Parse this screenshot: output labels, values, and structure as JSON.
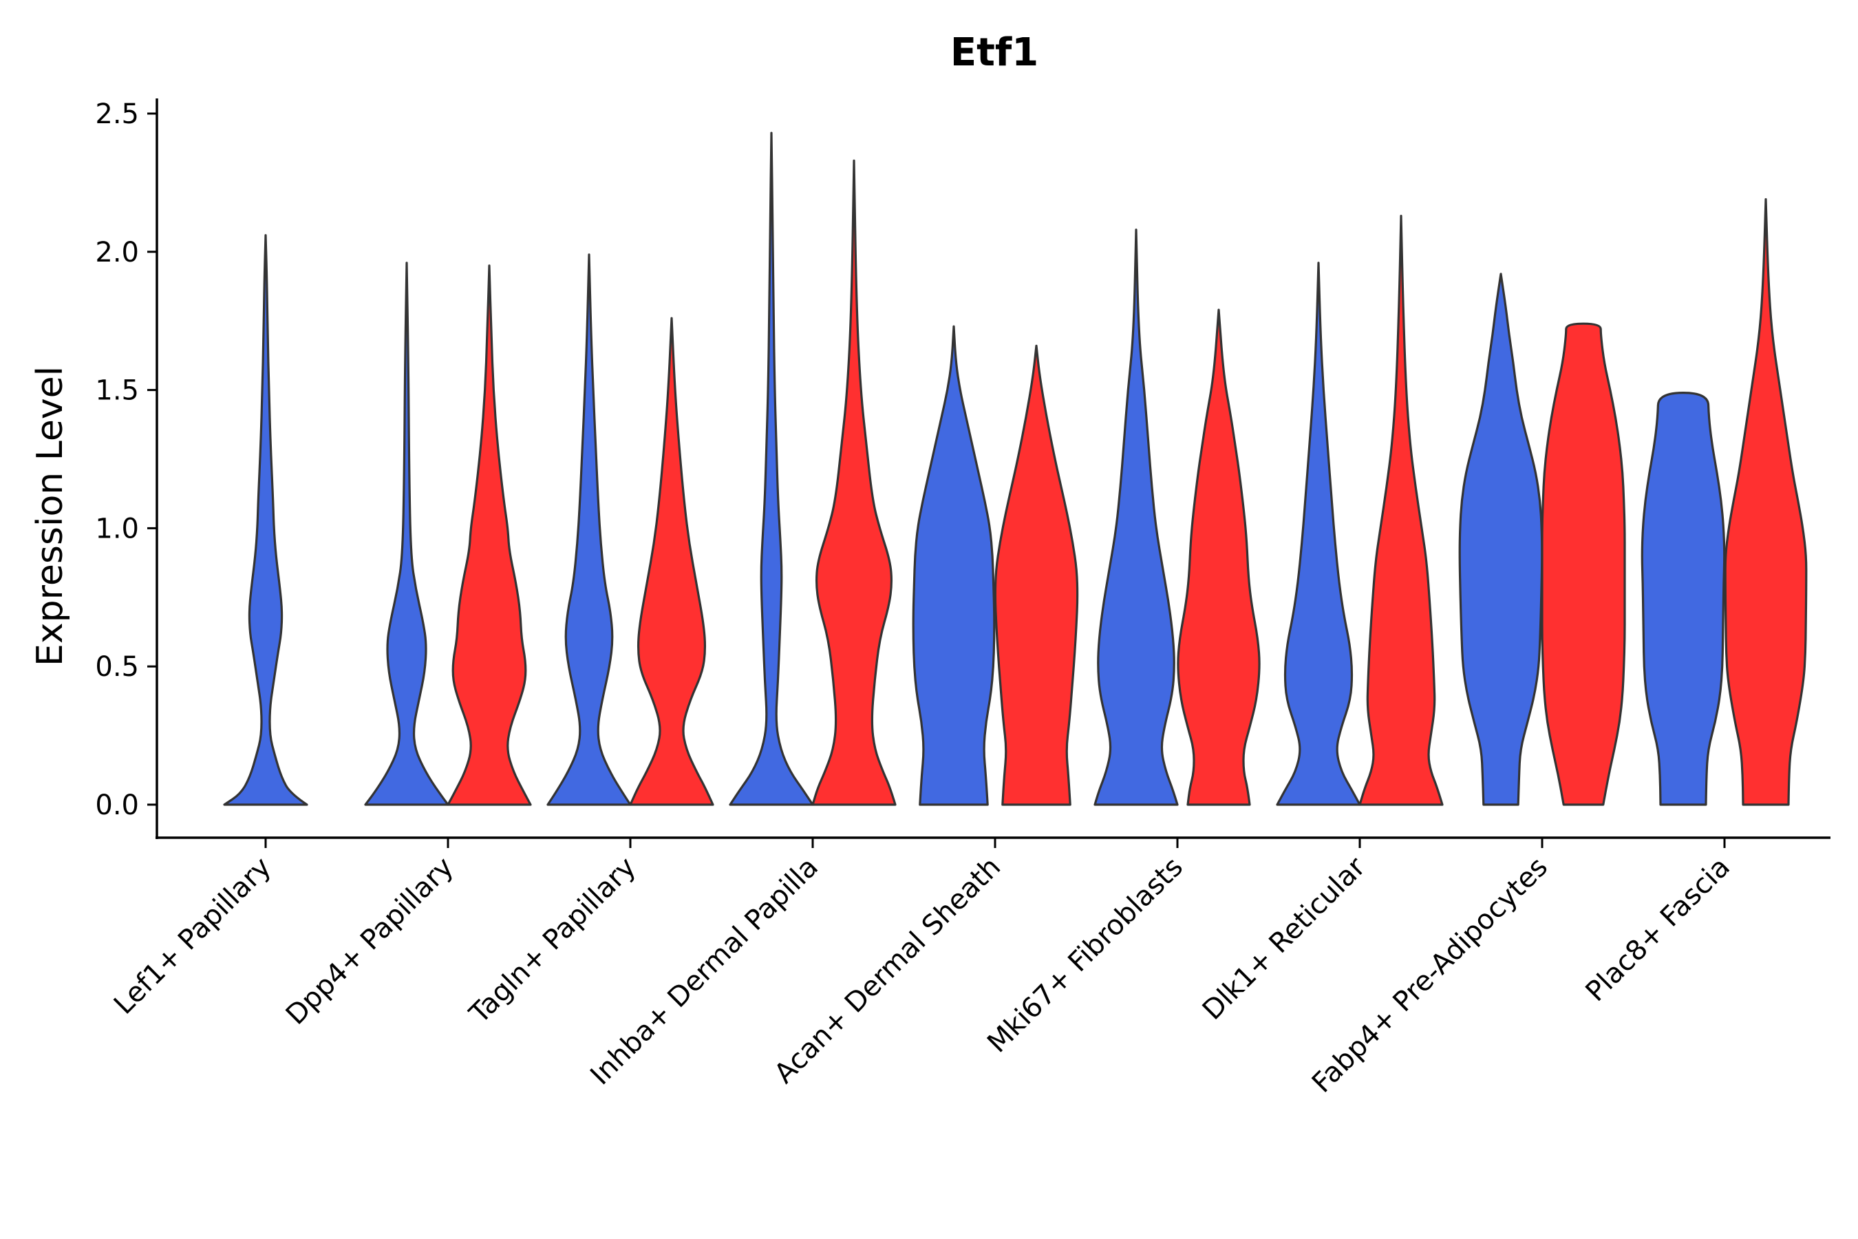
{
  "chart_data": {
    "type": "violin",
    "title": "Etf1",
    "xlabel": "",
    "ylabel": "Expression Level",
    "ylim": [
      -0.12,
      2.55
    ],
    "yticks": [
      0.0,
      0.5,
      1.0,
      1.5,
      2.0,
      2.5
    ],
    "ytick_labels": [
      "0.0",
      "0.5",
      "1.0",
      "1.5",
      "2.0",
      "2.5"
    ],
    "categories": [
      "Lef1+ Papillary",
      "Dpp4+ Papillary",
      "Tagln+ Papillary",
      "Inhba+ Dermal Papilla",
      "Acan+ Dermal Sheath",
      "Mki67+ Fibroblasts",
      "Dlk1+ Reticular",
      "Fabp4+ Pre-Adipocytes",
      "Plac8+ Fascia"
    ],
    "series_colors": {
      "blue": "#4169E1",
      "red": "#FF3030"
    },
    "violins": [
      {
        "category": "Lef1+ Papillary",
        "group": "blue",
        "max": 2.06,
        "profile": [
          [
            0.0,
            1.0
          ],
          [
            0.04,
            0.6
          ],
          [
            0.1,
            0.38
          ],
          [
            0.18,
            0.22
          ],
          [
            0.25,
            0.1
          ],
          [
            0.35,
            0.1
          ],
          [
            0.45,
            0.2
          ],
          [
            0.55,
            0.3
          ],
          [
            0.62,
            0.38
          ],
          [
            0.7,
            0.4
          ],
          [
            0.78,
            0.35
          ],
          [
            0.9,
            0.25
          ],
          [
            1.0,
            0.2
          ],
          [
            1.1,
            0.18
          ],
          [
            1.3,
            0.12
          ],
          [
            1.5,
            0.08
          ],
          [
            1.7,
            0.05
          ],
          [
            1.9,
            0.03
          ],
          [
            2.06,
            0.0
          ]
        ]
      },
      {
        "category": "Dpp4+ Papillary",
        "group": "blue",
        "max": 1.96,
        "profile": [
          [
            0.0,
            1.0
          ],
          [
            0.05,
            0.75
          ],
          [
            0.12,
            0.45
          ],
          [
            0.2,
            0.2
          ],
          [
            0.28,
            0.16
          ],
          [
            0.38,
            0.3
          ],
          [
            0.48,
            0.44
          ],
          [
            0.58,
            0.48
          ],
          [
            0.66,
            0.4
          ],
          [
            0.78,
            0.22
          ],
          [
            0.9,
            0.1
          ],
          [
            1.2,
            0.06
          ],
          [
            1.6,
            0.04
          ],
          [
            1.96,
            0.0
          ]
        ]
      },
      {
        "category": "Dpp4+ Papillary",
        "group": "red",
        "max": 1.95,
        "profile": [
          [
            0.0,
            1.0
          ],
          [
            0.05,
            0.82
          ],
          [
            0.12,
            0.58
          ],
          [
            0.2,
            0.42
          ],
          [
            0.28,
            0.5
          ],
          [
            0.38,
            0.75
          ],
          [
            0.45,
            0.88
          ],
          [
            0.52,
            0.88
          ],
          [
            0.6,
            0.78
          ],
          [
            0.7,
            0.75
          ],
          [
            0.8,
            0.65
          ],
          [
            0.92,
            0.48
          ],
          [
            1.0,
            0.45
          ],
          [
            1.1,
            0.35
          ],
          [
            1.3,
            0.2
          ],
          [
            1.5,
            0.1
          ],
          [
            1.7,
            0.05
          ],
          [
            1.95,
            0.0
          ]
        ]
      },
      {
        "category": "Tagln+ Papillary",
        "group": "blue",
        "max": 1.99,
        "profile": [
          [
            0.0,
            1.0
          ],
          [
            0.05,
            0.78
          ],
          [
            0.12,
            0.5
          ],
          [
            0.2,
            0.26
          ],
          [
            0.28,
            0.2
          ],
          [
            0.38,
            0.32
          ],
          [
            0.5,
            0.5
          ],
          [
            0.6,
            0.58
          ],
          [
            0.7,
            0.52
          ],
          [
            0.8,
            0.38
          ],
          [
            0.95,
            0.28
          ],
          [
            1.1,
            0.22
          ],
          [
            1.3,
            0.16
          ],
          [
            1.5,
            0.1
          ],
          [
            1.7,
            0.05
          ],
          [
            1.99,
            0.0
          ]
        ]
      },
      {
        "category": "Tagln+ Papillary",
        "group": "red",
        "max": 1.76,
        "profile": [
          [
            0.0,
            1.0
          ],
          [
            0.06,
            0.82
          ],
          [
            0.12,
            0.6
          ],
          [
            0.2,
            0.35
          ],
          [
            0.28,
            0.25
          ],
          [
            0.38,
            0.45
          ],
          [
            0.48,
            0.75
          ],
          [
            0.56,
            0.82
          ],
          [
            0.65,
            0.78
          ],
          [
            0.8,
            0.6
          ],
          [
            0.95,
            0.42
          ],
          [
            1.1,
            0.3
          ],
          [
            1.3,
            0.18
          ],
          [
            1.5,
            0.08
          ],
          [
            1.76,
            0.0
          ]
        ]
      },
      {
        "category": "Inhba+ Dermal Papilla",
        "group": "blue",
        "max": 2.43,
        "profile": [
          [
            0.0,
            1.0
          ],
          [
            0.05,
            0.78
          ],
          [
            0.12,
            0.45
          ],
          [
            0.2,
            0.22
          ],
          [
            0.3,
            0.1
          ],
          [
            0.45,
            0.16
          ],
          [
            0.6,
            0.2
          ],
          [
            0.75,
            0.24
          ],
          [
            0.85,
            0.25
          ],
          [
            0.95,
            0.22
          ],
          [
            1.1,
            0.16
          ],
          [
            1.3,
            0.12
          ],
          [
            1.5,
            0.08
          ],
          [
            1.8,
            0.05
          ],
          [
            2.1,
            0.03
          ],
          [
            2.43,
            0.0
          ]
        ]
      },
      {
        "category": "Inhba+ Dermal Papilla",
        "group": "red",
        "max": 2.33,
        "profile": [
          [
            0.0,
            1.0
          ],
          [
            0.06,
            0.88
          ],
          [
            0.12,
            0.7
          ],
          [
            0.2,
            0.5
          ],
          [
            0.3,
            0.42
          ],
          [
            0.45,
            0.5
          ],
          [
            0.6,
            0.62
          ],
          [
            0.72,
            0.85
          ],
          [
            0.8,
            0.92
          ],
          [
            0.88,
            0.88
          ],
          [
            1.0,
            0.62
          ],
          [
            1.1,
            0.45
          ],
          [
            1.3,
            0.3
          ],
          [
            1.5,
            0.16
          ],
          [
            1.8,
            0.06
          ],
          [
            2.33,
            0.0
          ]
        ]
      },
      {
        "category": "Acan+ Dermal Sheath",
        "group": "blue",
        "max": 1.73,
        "profile": [
          [
            0.0,
            0.82
          ],
          [
            0.1,
            0.78
          ],
          [
            0.2,
            0.72
          ],
          [
            0.3,
            0.78
          ],
          [
            0.4,
            0.9
          ],
          [
            0.5,
            0.96
          ],
          [
            0.6,
            0.98
          ],
          [
            0.7,
            0.98
          ],
          [
            0.8,
            0.96
          ],
          [
            0.9,
            0.94
          ],
          [
            1.0,
            0.88
          ],
          [
            1.1,
            0.75
          ],
          [
            1.2,
            0.6
          ],
          [
            1.3,
            0.45
          ],
          [
            1.4,
            0.3
          ],
          [
            1.5,
            0.15
          ],
          [
            1.6,
            0.05
          ],
          [
            1.73,
            0.0
          ]
        ]
      },
      {
        "category": "Acan+ Dermal Sheath",
        "group": "red",
        "max": 1.66,
        "profile": [
          [
            0.0,
            0.82
          ],
          [
            0.1,
            0.78
          ],
          [
            0.2,
            0.72
          ],
          [
            0.3,
            0.8
          ],
          [
            0.45,
            0.88
          ],
          [
            0.55,
            0.93
          ],
          [
            0.65,
            0.97
          ],
          [
            0.75,
            1.0
          ],
          [
            0.85,
            0.98
          ],
          [
            0.95,
            0.88
          ],
          [
            1.05,
            0.75
          ],
          [
            1.15,
            0.6
          ],
          [
            1.25,
            0.45
          ],
          [
            1.4,
            0.25
          ],
          [
            1.55,
            0.08
          ],
          [
            1.66,
            0.0
          ]
        ]
      },
      {
        "category": "Mki67+ Fibroblasts",
        "group": "blue",
        "max": 2.08,
        "profile": [
          [
            0.0,
            1.0
          ],
          [
            0.05,
            0.9
          ],
          [
            0.12,
            0.72
          ],
          [
            0.2,
            0.6
          ],
          [
            0.28,
            0.68
          ],
          [
            0.4,
            0.88
          ],
          [
            0.5,
            0.93
          ],
          [
            0.6,
            0.9
          ],
          [
            0.72,
            0.8
          ],
          [
            0.85,
            0.65
          ],
          [
            1.0,
            0.48
          ],
          [
            1.15,
            0.38
          ],
          [
            1.3,
            0.3
          ],
          [
            1.5,
            0.2
          ],
          [
            1.7,
            0.06
          ],
          [
            2.08,
            0.0
          ]
        ]
      },
      {
        "category": "Mki67+ Fibroblasts",
        "group": "red",
        "max": 1.79,
        "profile": [
          [
            0.0,
            0.75
          ],
          [
            0.06,
            0.7
          ],
          [
            0.12,
            0.6
          ],
          [
            0.2,
            0.6
          ],
          [
            0.28,
            0.75
          ],
          [
            0.38,
            0.92
          ],
          [
            0.5,
            1.0
          ],
          [
            0.6,
            0.95
          ],
          [
            0.72,
            0.8
          ],
          [
            0.82,
            0.72
          ],
          [
            0.95,
            0.68
          ],
          [
            1.05,
            0.62
          ],
          [
            1.2,
            0.5
          ],
          [
            1.3,
            0.4
          ],
          [
            1.4,
            0.3
          ],
          [
            1.55,
            0.12
          ],
          [
            1.79,
            0.0
          ]
        ]
      },
      {
        "category": "Dlk1+ Reticular",
        "group": "blue",
        "max": 1.96,
        "profile": [
          [
            0.0,
            1.0
          ],
          [
            0.05,
            0.82
          ],
          [
            0.12,
            0.55
          ],
          [
            0.2,
            0.42
          ],
          [
            0.28,
            0.55
          ],
          [
            0.38,
            0.78
          ],
          [
            0.48,
            0.82
          ],
          [
            0.58,
            0.76
          ],
          [
            0.68,
            0.62
          ],
          [
            0.8,
            0.5
          ],
          [
            0.95,
            0.4
          ],
          [
            1.1,
            0.32
          ],
          [
            1.3,
            0.22
          ],
          [
            1.5,
            0.12
          ],
          [
            1.7,
            0.05
          ],
          [
            1.96,
            0.0
          ]
        ]
      },
      {
        "category": "Dlk1+ Reticular",
        "group": "red",
        "max": 2.13,
        "profile": [
          [
            0.0,
            1.0
          ],
          [
            0.06,
            0.88
          ],
          [
            0.12,
            0.72
          ],
          [
            0.18,
            0.65
          ],
          [
            0.25,
            0.72
          ],
          [
            0.35,
            0.82
          ],
          [
            0.45,
            0.8
          ],
          [
            0.58,
            0.76
          ],
          [
            0.72,
            0.7
          ],
          [
            0.88,
            0.62
          ],
          [
            1.0,
            0.5
          ],
          [
            1.15,
            0.35
          ],
          [
            1.3,
            0.22
          ],
          [
            1.5,
            0.12
          ],
          [
            1.8,
            0.05
          ],
          [
            2.13,
            0.0
          ]
        ]
      },
      {
        "category": "Fabp4+ Pre-Adipocytes",
        "group": "blue",
        "max": 1.92,
        "profile": [
          [
            0.0,
            0.42
          ],
          [
            0.1,
            0.44
          ],
          [
            0.2,
            0.47
          ],
          [
            0.3,
            0.65
          ],
          [
            0.4,
            0.82
          ],
          [
            0.5,
            0.92
          ],
          [
            0.6,
            0.95
          ],
          [
            0.75,
            0.98
          ],
          [
            0.9,
            1.0
          ],
          [
            1.0,
            0.99
          ],
          [
            1.1,
            0.95
          ],
          [
            1.2,
            0.85
          ],
          [
            1.3,
            0.68
          ],
          [
            1.4,
            0.5
          ],
          [
            1.5,
            0.38
          ],
          [
            1.6,
            0.3
          ],
          [
            1.7,
            0.2
          ],
          [
            1.8,
            0.12
          ],
          [
            1.92,
            0.0
          ]
        ]
      },
      {
        "category": "Fabp4+ Pre-Adipocytes",
        "group": "red",
        "max": 1.74,
        "profile": [
          [
            0.0,
            0.48
          ],
          [
            0.1,
            0.6
          ],
          [
            0.2,
            0.75
          ],
          [
            0.3,
            0.88
          ],
          [
            0.4,
            0.95
          ],
          [
            0.5,
            0.98
          ],
          [
            0.6,
            1.0
          ],
          [
            0.7,
            1.0
          ],
          [
            0.8,
            1.0
          ],
          [
            0.9,
            1.0
          ],
          [
            1.0,
            1.0
          ],
          [
            1.1,
            0.98
          ],
          [
            1.2,
            0.95
          ],
          [
            1.3,
            0.88
          ],
          [
            1.4,
            0.78
          ],
          [
            1.5,
            0.65
          ],
          [
            1.6,
            0.5
          ],
          [
            1.7,
            0.42
          ],
          [
            1.74,
            0.42
          ]
        ]
      },
      {
        "category": "Plac8+ Fascia",
        "group": "blue",
        "max": 1.49,
        "profile": [
          [
            0.0,
            0.55
          ],
          [
            0.1,
            0.56
          ],
          [
            0.2,
            0.6
          ],
          [
            0.3,
            0.78
          ],
          [
            0.4,
            0.9
          ],
          [
            0.5,
            0.95
          ],
          [
            0.6,
            0.96
          ],
          [
            0.7,
            0.97
          ],
          [
            0.8,
            0.98
          ],
          [
            0.9,
            1.0
          ],
          [
            1.0,
            0.98
          ],
          [
            1.1,
            0.92
          ],
          [
            1.2,
            0.82
          ],
          [
            1.3,
            0.7
          ],
          [
            1.4,
            0.62
          ],
          [
            1.49,
            0.6
          ]
        ]
      },
      {
        "category": "Plac8+ Fascia",
        "group": "red",
        "max": 2.19,
        "profile": [
          [
            0.0,
            0.55
          ],
          [
            0.1,
            0.56
          ],
          [
            0.2,
            0.6
          ],
          [
            0.3,
            0.75
          ],
          [
            0.45,
            0.92
          ],
          [
            0.55,
            0.96
          ],
          [
            0.65,
            0.97
          ],
          [
            0.8,
            0.98
          ],
          [
            0.9,
            0.98
          ],
          [
            1.0,
            0.9
          ],
          [
            1.1,
            0.78
          ],
          [
            1.2,
            0.65
          ],
          [
            1.35,
            0.5
          ],
          [
            1.5,
            0.35
          ],
          [
            1.7,
            0.15
          ],
          [
            1.9,
            0.06
          ],
          [
            2.19,
            0.0
          ]
        ]
      }
    ]
  }
}
